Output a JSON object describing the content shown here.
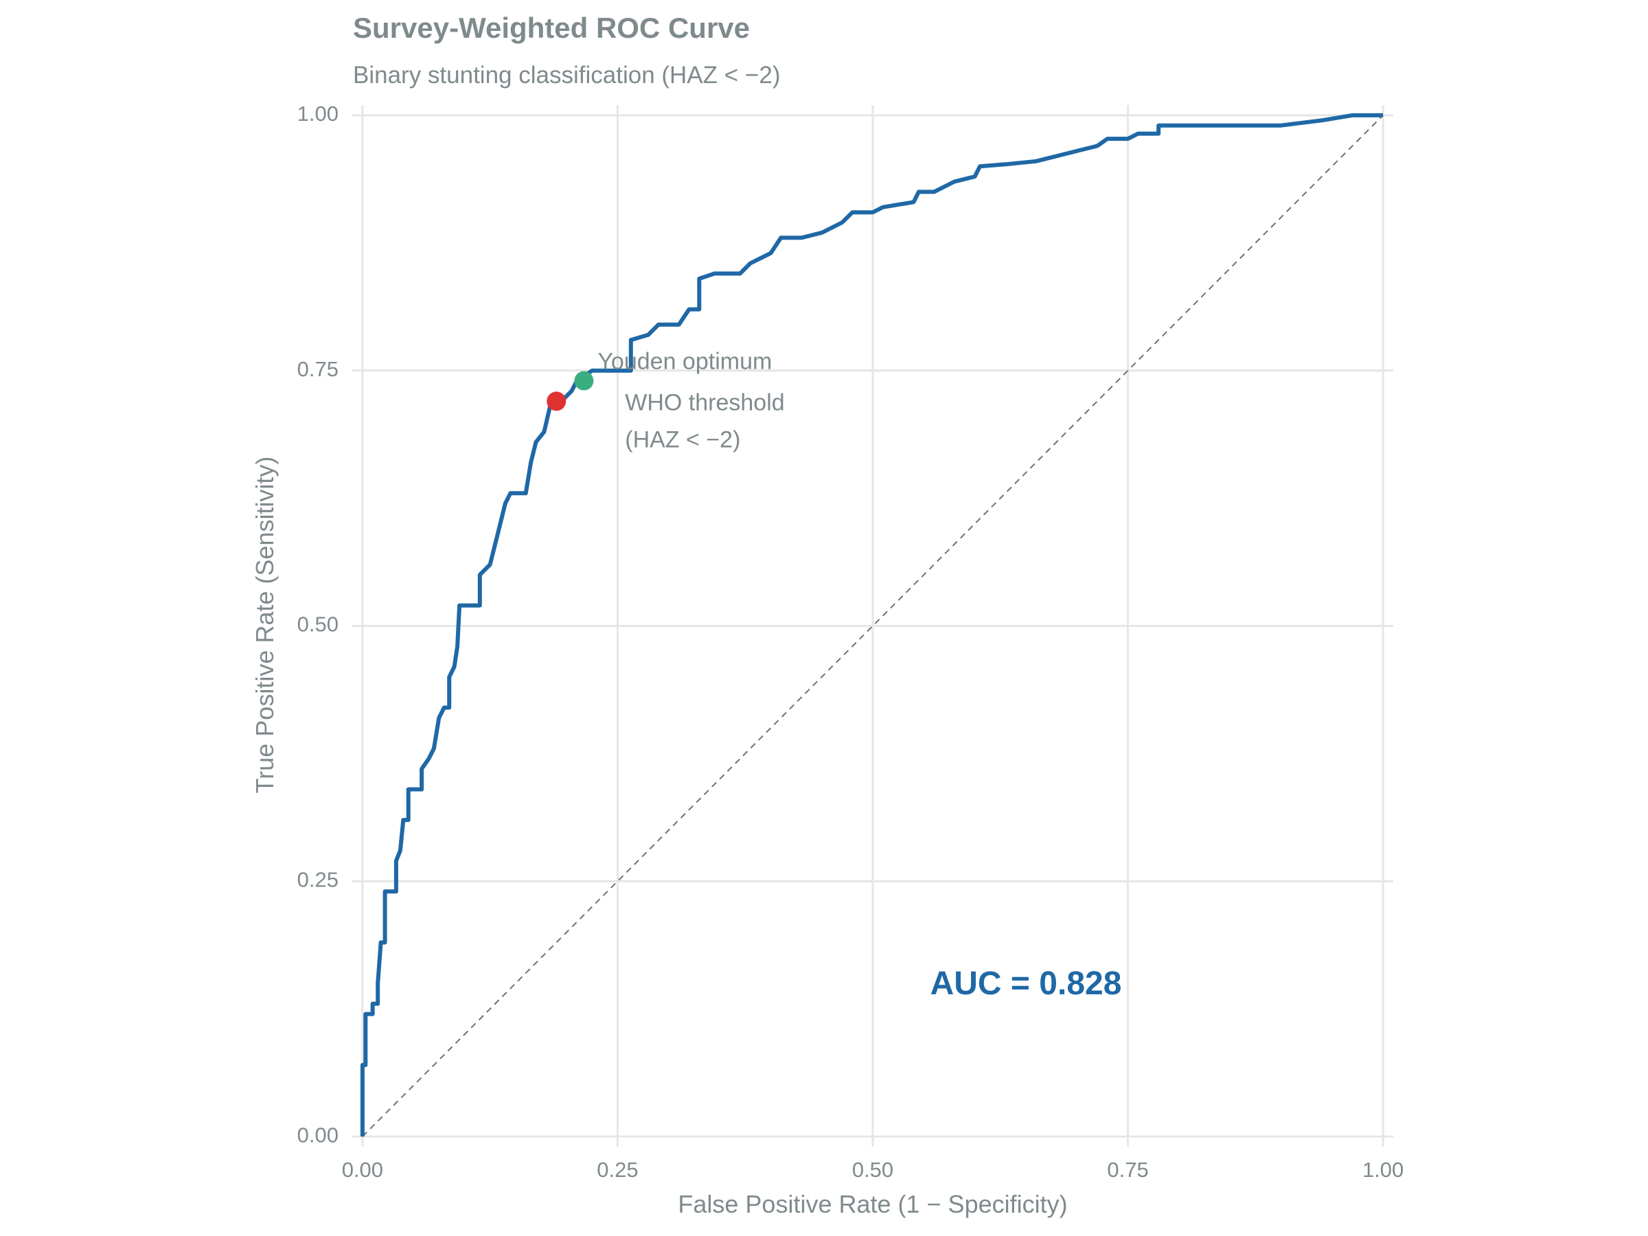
{
  "chart_data": {
    "type": "line",
    "title": "Survey-Weighted ROC Curve",
    "subtitle": "Binary stunting classification (HAZ < −2)",
    "x_label": "False Positive Rate (1 − Specificity)",
    "y_label": "True Positive Rate (Sensitivity)",
    "color": "#1f68a6",
    "x": [
      0,
      0,
      0.003,
      0.003,
      0.01,
      0.01,
      0.015,
      0.015,
      0.018,
      0.022,
      0.022,
      0.033,
      0.033,
      0.037,
      0.04,
      0.045,
      0.045,
      0.058,
      0.058,
      0.065,
      0.07,
      0.075,
      0.08,
      0.085,
      0.085,
      0.09,
      0.093,
      0.095,
      0.115,
      0.115,
      0.125,
      0.13,
      0.135,
      0.14,
      0.145,
      0.16,
      0.165,
      0.17,
      0.178,
      0.185,
      0.195,
      0.205,
      0.21,
      0.225,
      0.24,
      0.263,
      0.263,
      0.28,
      0.29,
      0.31,
      0.32,
      0.33,
      0.33,
      0.345,
      0.37,
      0.38,
      0.39,
      0.4,
      0.41,
      0.43,
      0.45,
      0.46,
      0.47,
      0.48,
      0.5,
      0.51,
      0.54,
      0.545,
      0.56,
      0.58,
      0.6,
      0.605,
      0.63,
      0.66,
      0.68,
      0.7,
      0.72,
      0.73,
      0.75,
      0.76,
      0.78,
      0.78,
      0.8,
      0.9,
      0.94,
      0.97,
      1
    ],
    "values": [
      0,
      0.07,
      0.07,
      0.12,
      0.12,
      0.13,
      0.13,
      0.15,
      0.19,
      0.19,
      0.24,
      0.24,
      0.27,
      0.28,
      0.31,
      0.31,
      0.34,
      0.34,
      0.36,
      0.37,
      0.38,
      0.41,
      0.42,
      0.42,
      0.45,
      0.46,
      0.48,
      0.52,
      0.52,
      0.55,
      0.56,
      0.58,
      0.6,
      0.62,
      0.63,
      0.63,
      0.66,
      0.68,
      0.69,
      0.72,
      0.72,
      0.73,
      0.74,
      0.75,
      0.75,
      0.75,
      0.78,
      0.785,
      0.795,
      0.795,
      0.81,
      0.81,
      0.84,
      0.845,
      0.845,
      0.855,
      0.86,
      0.865,
      0.88,
      0.88,
      0.885,
      0.89,
      0.895,
      0.905,
      0.905,
      0.91,
      0.915,
      0.925,
      0.925,
      0.935,
      0.94,
      0.95,
      0.952,
      0.955,
      0.96,
      0.965,
      0.97,
      0.977,
      0.977,
      0.982,
      0.982,
      0.99,
      0.99,
      0.99,
      0.995,
      1,
      1
    ],
    "points": [
      {
        "label": [
          "WHO threshold",
          "(HAZ < −2)"
        ],
        "x": 0.19,
        "y": 0.72,
        "color": "#e03131"
      },
      {
        "label": [
          "Youden optimum"
        ],
        "x": 0.217,
        "y": 0.74,
        "color": "#3aae80"
      }
    ],
    "auc_label": "AUC = 0.828",
    "xlim": [
      -0.01,
      1.01
    ],
    "ylim": [
      -0.01,
      1.01
    ],
    "xticks": [
      {
        "value": 0,
        "label": "0.00"
      },
      {
        "value": 0.25,
        "label": "0.25"
      },
      {
        "value": 0.5,
        "label": "0.50"
      },
      {
        "value": 0.75,
        "label": "0.75"
      },
      {
        "value": 1,
        "label": "1.00"
      }
    ],
    "yticks": [
      {
        "value": 0,
        "label": "0.00"
      },
      {
        "value": 0.25,
        "label": "0.25"
      },
      {
        "value": 0.5,
        "label": "0.50"
      },
      {
        "value": 0.75,
        "label": "0.75"
      },
      {
        "value": 1,
        "label": "1.00"
      }
    ],
    "grid": true
  }
}
